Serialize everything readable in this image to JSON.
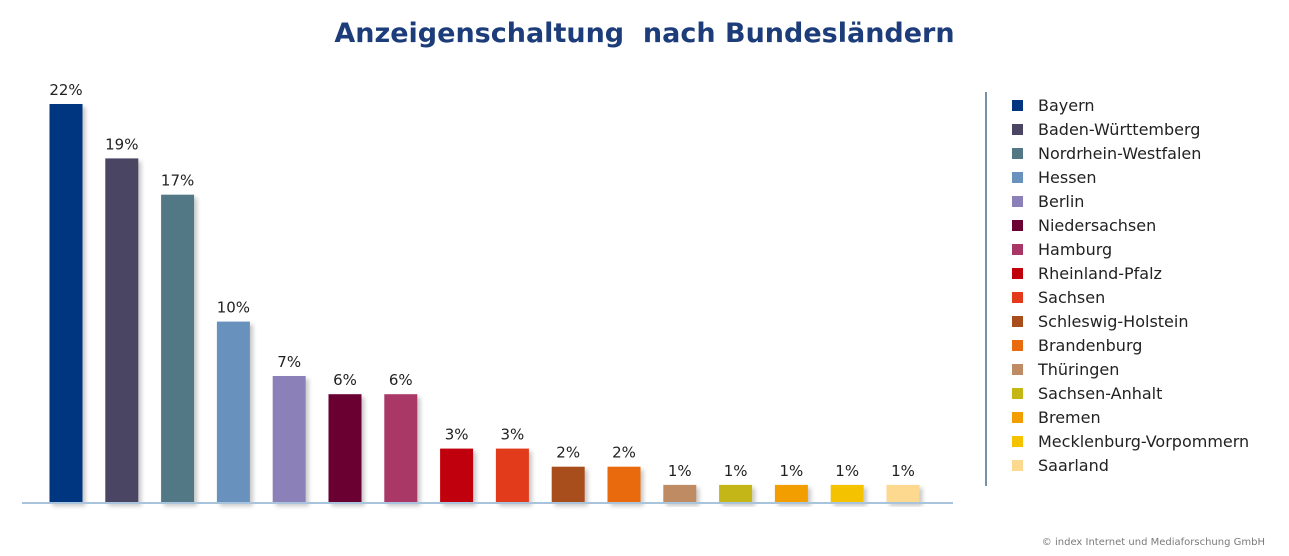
{
  "chart_data": {
    "type": "bar",
    "title": "Anzeigenschaltung  nach Bundesländern",
    "xlabel": "",
    "ylabel": "",
    "ylim": [
      0,
      22
    ],
    "grid": false,
    "legend_position": "right",
    "categories": [
      "Bayern",
      "Baden-Württemberg",
      "Nordrhein-Westfalen",
      "Hessen",
      "Berlin",
      "Niedersachsen",
      "Hamburg",
      "Rheinland-Pfalz",
      "Sachsen",
      "Schleswig-Holstein",
      "Brandenburg",
      "Thüringen",
      "Sachsen-Anhalt",
      "Bremen",
      "Mecklenburg-Vorpommern",
      "Saarland"
    ],
    "values": [
      22,
      19,
      17,
      10,
      7,
      6,
      6,
      3,
      3,
      2,
      2,
      1,
      1,
      1,
      1,
      1
    ],
    "value_labels": [
      "22%",
      "19%",
      "17%",
      "10%",
      "7%",
      "6%",
      "6%",
      "3%",
      "3%",
      "2%",
      "2%",
      "1%",
      "1%",
      "1%",
      "1%",
      "1%"
    ],
    "colors": [
      "#013580",
      "#4a4563",
      "#517884",
      "#6891bd",
      "#8c80b8",
      "#6b0033",
      "#a93766",
      "#c0000a",
      "#e23a1a",
      "#a84e1c",
      "#e96b10",
      "#bf8b64",
      "#c4b615",
      "#f29e00",
      "#f5c200",
      "#fcd98f"
    ]
  },
  "credit": "© index Internet und Mediaforschung GmbH"
}
